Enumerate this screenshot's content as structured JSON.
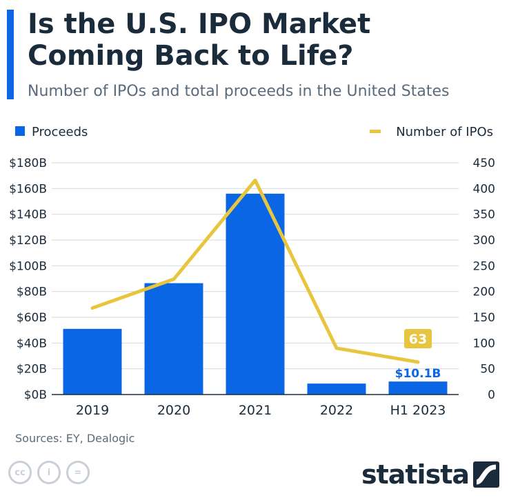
{
  "header": {
    "title": "Is the U.S. IPO Market Coming Back to Life?",
    "subtitle": "Number of IPOs and total proceeds in the United States"
  },
  "colors": {
    "accent": "#0a66e4",
    "bar": "#0a66e4",
    "line": "#e8c53e",
    "text": "#1a2b3c",
    "muted": "#5a6b7c",
    "grid": "#d5d9de"
  },
  "chart_data": {
    "type": "bar",
    "categories": [
      "2019",
      "2020",
      "2021",
      "2022",
      "H1 2023"
    ],
    "series": [
      {
        "name": "Proceeds",
        "type": "bar",
        "axis": "left",
        "values": [
          51,
          86.5,
          156,
          8.5,
          10.1
        ],
        "unit": "$B"
      },
      {
        "name": "Number of IPOs",
        "type": "line",
        "axis": "right",
        "values": [
          168,
          224,
          416,
          90,
          63
        ]
      }
    ],
    "left_axis": {
      "ylim": [
        0,
        180
      ],
      "ticks": [
        "$0B",
        "$20B",
        "$40B",
        "$60B",
        "$80B",
        "$100B",
        "$120B",
        "$140B",
        "$160B",
        "$180B"
      ]
    },
    "right_axis": {
      "ylim": [
        0,
        450
      ],
      "ticks": [
        "0",
        "50",
        "100",
        "150",
        "200",
        "250",
        "300",
        "350",
        "400",
        "450"
      ]
    },
    "annotations": {
      "last_bar_label": "$10.1B",
      "last_line_label": "63"
    },
    "legend_placement": "top",
    "grid": true
  },
  "footer": {
    "source": "Sources: EY, Dealogic",
    "brand": "statista",
    "license_icons": [
      "cc",
      "i",
      "="
    ]
  }
}
